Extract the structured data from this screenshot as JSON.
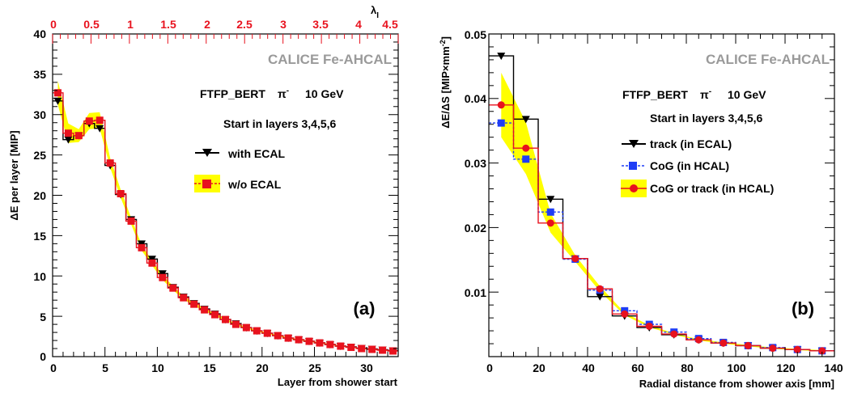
{
  "chart_data": [
    {
      "type": "line",
      "panel_label": "(a)",
      "watermark": "CALICE Fe-AHCAL",
      "annotations": [
        "FTFP_BERT",
        "π",
        "-",
        "10 GeV",
        "Start in layers 3,4,5,6"
      ],
      "xlabel": "Layer from shower start",
      "ylabel": "ΔE per layer [MIP]",
      "xlim": [
        0,
        33
      ],
      "ylim": [
        0,
        40
      ],
      "x_ticks": [
        "0",
        "5",
        "10",
        "15",
        "20",
        "25",
        "30"
      ],
      "y_ticks": [
        "0",
        "5",
        "10",
        "15",
        "20",
        "25",
        "30",
        "35",
        "40"
      ],
      "top_axis": {
        "label": "λ",
        "label_sub": "I",
        "color": "#e8121e",
        "range": [
          0,
          4.5
        ],
        "ticks": [
          "0",
          "0.5",
          "1",
          "1.5",
          "2",
          "2.5",
          "3",
          "3.5",
          "4",
          "4.5"
        ]
      },
      "legend": {
        "placement": "right"
      },
      "x": [
        0.5,
        1.5,
        2.5,
        3.5,
        4.5,
        5.5,
        6.5,
        7.5,
        8.5,
        9.5,
        10.5,
        11.5,
        12.5,
        13.5,
        14.5,
        15.5,
        16.5,
        17.5,
        18.5,
        19.5,
        20.5,
        21.5,
        22.5,
        23.5,
        24.5,
        25.5,
        26.5,
        27.5,
        28.5,
        29.5,
        30.5,
        31.5,
        32.5
      ],
      "series": [
        {
          "name": "with ECAL",
          "color": "#000000",
          "marker": "triangle-down",
          "values": [
            31.7,
            26.9,
            27.4,
            28.9,
            28.3,
            23.7,
            20.1,
            17.0,
            14.0,
            12.1,
            10.3,
            8.6,
            7.4,
            6.6,
            5.9,
            5.3,
            4.6,
            4.1,
            3.6,
            3.2,
            2.9,
            2.6,
            2.3,
            2.1,
            1.9,
            1.7,
            1.5,
            1.3,
            1.2,
            1.05,
            0.95,
            0.85,
            0.75
          ]
        },
        {
          "name": "w/o ECAL",
          "color": "#e8121e",
          "marker": "square",
          "band_color": "#ffff00",
          "values": [
            32.7,
            27.7,
            27.4,
            29.2,
            29.3,
            24.0,
            20.2,
            16.8,
            13.5,
            11.6,
            9.8,
            8.5,
            7.3,
            6.5,
            5.8,
            5.2,
            4.6,
            4.0,
            3.6,
            3.2,
            2.9,
            2.6,
            2.3,
            2.1,
            1.9,
            1.7,
            1.5,
            1.3,
            1.15,
            1.0,
            0.9,
            0.8,
            0.7
          ],
          "band_halfwidth": [
            1.5,
            1.2,
            0.8,
            1.0,
            1.0,
            0.6,
            0.5,
            0.4,
            0.35,
            0.3,
            0.3,
            0.25,
            0.2,
            0.2,
            0.15,
            0.15,
            0.12,
            0.1,
            0.1,
            0.1,
            0.08,
            0.08,
            0.08,
            0.07,
            0.07,
            0.06,
            0.06,
            0.05,
            0.05,
            0.05,
            0.05,
            0.05,
            0.05
          ]
        }
      ]
    },
    {
      "type": "line",
      "panel_label": "(b)",
      "watermark": "CALICE Fe-AHCAL",
      "annotations": [
        "FTFP_BERT",
        "π",
        "-",
        "10 GeV",
        "Start in layers 3,4,5,6"
      ],
      "xlabel": "Radial distance from shower axis [mm]",
      "ylabel": "ΔE/ΔS [MIP×mm",
      "ylabel_sup": "-2",
      "ylabel_close": "]",
      "xlim": [
        0,
        140
      ],
      "ylim": [
        0,
        0.05
      ],
      "x_ticks": [
        "0",
        "20",
        "40",
        "60",
        "80",
        "100",
        "120",
        "140"
      ],
      "y_ticks": [
        "0.01",
        "0.02",
        "0.03",
        "0.04",
        "0.05"
      ],
      "legend": {
        "placement": "right"
      },
      "x": [
        5,
        15,
        25,
        35,
        45,
        55,
        65,
        75,
        85,
        95,
        105,
        115,
        125,
        135
      ],
      "series": [
        {
          "name": "track (in ECAL)",
          "color": "#000000",
          "marker": "triangle-down",
          "values": [
            0.0466,
            0.0368,
            0.0244,
            0.0152,
            0.0093,
            0.0063,
            0.0045,
            0.0034,
            0.0026,
            0.0021,
            0.0017,
            0.0013,
            0.0011,
            0.0009
          ]
        },
        {
          "name": "CoG (in HCAL)",
          "color": "#1f3df5",
          "marker": "square",
          "values": [
            0.0362,
            0.0306,
            0.0224,
            0.0151,
            0.0103,
            0.0071,
            0.005,
            0.0038,
            0.0028,
            0.0022,
            0.0017,
            0.0014,
            0.0011,
            0.0009
          ]
        },
        {
          "name": "CoG or track (in HCAL)",
          "color": "#e8121e",
          "marker": "circle",
          "band_color": "#ffff00",
          "values": [
            0.039,
            0.0323,
            0.0207,
            0.0152,
            0.0105,
            0.0066,
            0.0047,
            0.0035,
            0.0026,
            0.0021,
            0.0017,
            0.0013,
            0.0011,
            0.0009
          ],
          "band_halfwidth": [
            0.005,
            0.004,
            0.0015,
            0.0005,
            0.0004,
            0.0002,
            0.00015,
            0.0001,
            0.0001,
            0.0001,
            0.0001,
            0.0001,
            0.0001,
            0.0001
          ]
        }
      ]
    }
  ]
}
